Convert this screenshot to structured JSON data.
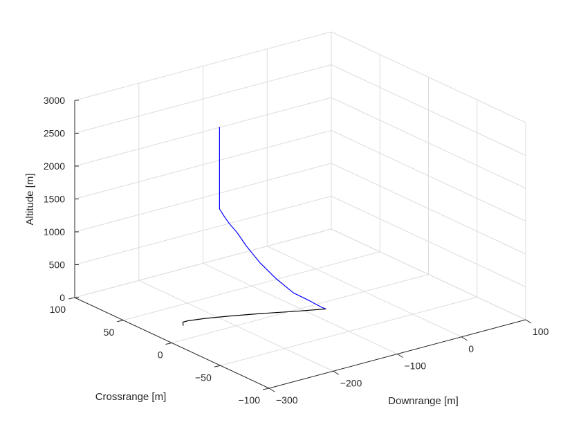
{
  "chart_data": {
    "type": "line",
    "title": "",
    "xlabel": "Downrange [m]",
    "ylabel": "Crossrange [m]",
    "zlabel": "Altitude [m]",
    "xlim": [
      -300,
      100
    ],
    "ylim": [
      -100,
      100
    ],
    "zlim": [
      0,
      3000
    ],
    "xticks": [
      -300,
      -200,
      -100,
      0,
      100
    ],
    "yticks": [
      -100,
      -50,
      0,
      50,
      100
    ],
    "zticks": [
      0,
      500,
      1000,
      1500,
      2000,
      2500,
      3000
    ],
    "grid": true,
    "series": [
      {
        "color": "#0000ff",
        "points": [
          {
            "x": -150,
            "y": 50,
            "z": 2550
          },
          {
            "x": -150,
            "y": 50,
            "z": 2300
          },
          {
            "x": -150,
            "y": 50,
            "z": 2050
          },
          {
            "x": -150,
            "y": 50,
            "z": 1800
          },
          {
            "x": -150,
            "y": 50,
            "z": 1550
          },
          {
            "x": -150,
            "y": 50,
            "z": 1400
          },
          {
            "x": -150,
            "y": 50,
            "z": 1300
          },
          {
            "x": -150,
            "y": 45,
            "z": 1220
          },
          {
            "x": -150,
            "y": 40,
            "z": 1150
          },
          {
            "x": -148,
            "y": 33,
            "z": 1050
          },
          {
            "x": -146,
            "y": 25,
            "z": 900
          },
          {
            "x": -140,
            "y": 15,
            "z": 700
          },
          {
            "x": -130,
            "y": 5,
            "z": 500
          },
          {
            "x": -115,
            "y": -3,
            "z": 300
          },
          {
            "x": -95,
            "y": -7,
            "z": 150
          },
          {
            "x": -80,
            "y": -9,
            "z": 30
          },
          {
            "x": -75,
            "y": -10,
            "z": 0
          }
        ]
      },
      {
        "color": "#000000",
        "points": [
          {
            "x": -75,
            "y": -10,
            "z": 0
          },
          {
            "x": -110,
            "y": -2,
            "z": 0
          },
          {
            "x": -150,
            "y": 8,
            "z": 0
          },
          {
            "x": -185,
            "y": 16,
            "z": 0
          },
          {
            "x": -215,
            "y": 22,
            "z": 0
          },
          {
            "x": -237,
            "y": 25,
            "z": 0
          },
          {
            "x": -245,
            "y": 25,
            "z": 0
          },
          {
            "x": -252,
            "y": 20,
            "z": 0
          }
        ]
      }
    ]
  }
}
